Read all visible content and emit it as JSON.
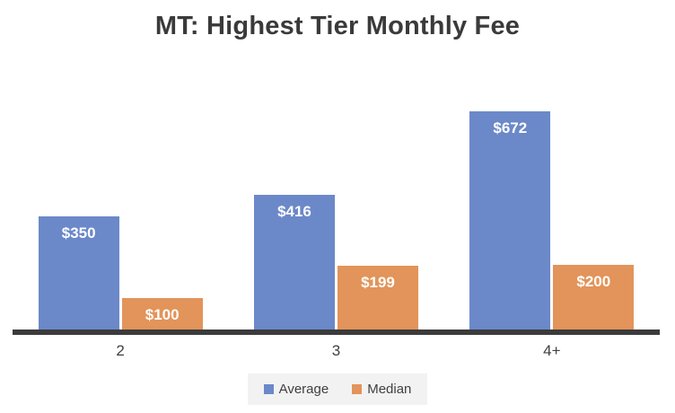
{
  "title": "MT: Highest Tier Monthly Fee",
  "colors": {
    "average_bar": "#6b88c9",
    "median_bar": "#e2945a",
    "axis_line": "#3b3b3b",
    "title_text": "#3a3a3a",
    "tick_text": "#404040",
    "data_label_text": "#ffffff",
    "legend_background": "#f2f2f2"
  },
  "legend": {
    "items": [
      {
        "label": "Average",
        "color": "#6b88c9"
      },
      {
        "label": "Median",
        "color": "#e2945a"
      }
    ]
  },
  "chart_data": {
    "type": "bar",
    "title": "MT: Highest Tier Monthly Fee",
    "categories": [
      "2",
      "3",
      "4+"
    ],
    "series": [
      {
        "name": "Average",
        "color": "#6b88c9",
        "values": [
          350,
          416,
          672
        ],
        "labels": [
          "$350",
          "$416",
          "$672"
        ]
      },
      {
        "name": "Median",
        "color": "#e2945a",
        "values": [
          100,
          199,
          200
        ],
        "labels": [
          "$100",
          "$199",
          "$200"
        ]
      }
    ],
    "xlabel": "",
    "ylabel": "",
    "ylim": [
      0,
      770
    ],
    "grid": false,
    "y_axis_visible": false,
    "legend_position": "bottom",
    "data_labels": "inside-end"
  }
}
